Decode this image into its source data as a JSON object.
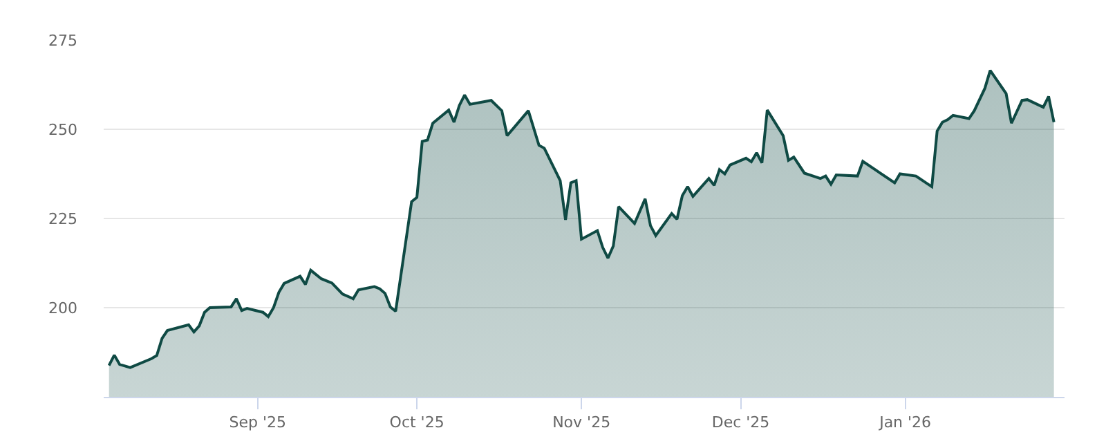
{
  "chart_data": {
    "type": "area",
    "x": [
      "2025-08-04",
      "2025-08-05",
      "2025-08-06",
      "2025-08-08",
      "2025-08-12",
      "2025-08-13",
      "2025-08-14",
      "2025-08-15",
      "2025-08-19",
      "2025-08-20",
      "2025-08-21",
      "2025-08-22",
      "2025-08-23",
      "2025-08-27",
      "2025-08-28",
      "2025-08-29",
      "2025-08-30",
      "2025-09-02",
      "2025-09-03",
      "2025-09-04",
      "2025-09-05",
      "2025-09-06",
      "2025-09-09",
      "2025-09-10",
      "2025-09-11",
      "2025-09-13",
      "2025-09-15",
      "2025-09-17",
      "2025-09-19",
      "2025-09-20",
      "2025-09-23",
      "2025-09-24",
      "2025-09-25",
      "2025-09-26",
      "2025-09-27",
      "2025-09-30",
      "2025-10-01",
      "2025-10-02",
      "2025-10-03",
      "2025-10-04",
      "2025-10-07",
      "2025-10-08",
      "2025-10-09",
      "2025-10-10",
      "2025-10-11",
      "2025-10-15",
      "2025-10-17",
      "2025-10-18",
      "2025-10-22",
      "2025-10-24",
      "2025-10-25",
      "2025-10-28",
      "2025-10-29",
      "2025-10-30",
      "2025-10-31",
      "2025-11-01",
      "2025-11-04",
      "2025-11-05",
      "2025-11-06",
      "2025-11-07",
      "2025-11-08",
      "2025-11-11",
      "2025-11-13",
      "2025-11-14",
      "2025-11-15",
      "2025-11-18",
      "2025-11-19",
      "2025-11-20",
      "2025-11-21",
      "2025-11-22",
      "2025-11-25",
      "2025-11-26",
      "2025-11-27",
      "2025-11-28",
      "2025-11-29",
      "2025-12-02",
      "2025-12-03",
      "2025-12-04",
      "2025-12-05",
      "2025-12-06",
      "2025-12-09",
      "2025-12-10",
      "2025-12-11",
      "2025-12-13",
      "2025-12-16",
      "2025-12-17",
      "2025-12-18",
      "2025-12-19",
      "2025-12-23",
      "2025-12-24",
      "2025-12-30",
      "2025-12-31",
      "2026-01-03",
      "2026-01-06",
      "2026-01-07",
      "2026-01-08",
      "2026-01-09",
      "2026-01-10",
      "2026-01-13",
      "2026-01-14",
      "2026-01-16",
      "2026-01-17",
      "2026-01-20",
      "2026-01-21",
      "2026-01-23",
      "2026-01-24",
      "2026-01-27",
      "2026-01-28",
      "2026-01-29"
    ],
    "series": [
      {
        "color": "#0f4a44",
        "values": [
          183.8,
          186.7,
          184.1,
          183.2,
          185.7,
          186.6,
          191.4,
          193.6,
          195.2,
          193.2,
          194.9,
          198.7,
          200.0,
          200.2,
          202.5,
          199.2,
          199.8,
          198.7,
          197.5,
          200.0,
          204.3,
          206.8,
          208.8,
          206.5,
          210.5,
          208.1,
          206.9,
          203.8,
          202.5,
          205.0,
          205.9,
          205.3,
          204.0,
          200.2,
          199.0,
          229.7,
          230.9,
          246.6,
          247.0,
          251.7,
          255.4,
          252.0,
          256.7,
          259.6,
          257.0,
          258.1,
          255.2,
          248.2,
          255.2,
          245.5,
          244.7,
          235.6,
          224.6,
          235.0,
          235.6,
          219.2,
          221.6,
          216.9,
          213.9,
          217.3,
          228.3,
          223.6,
          230.5,
          223.0,
          220.2,
          226.4,
          224.8,
          231.4,
          233.9,
          231.2,
          236.2,
          234.3,
          238.7,
          237.5,
          240.0,
          241.9,
          240.9,
          243.4,
          240.6,
          255.4,
          248.2,
          241.3,
          242.2,
          237.7,
          236.2,
          236.9,
          234.6,
          237.2,
          236.9,
          241.0,
          235.0,
          237.5,
          236.9,
          233.9,
          249.5,
          252.0,
          252.7,
          253.9,
          253.0,
          255.2,
          261.5,
          266.5,
          260.0,
          251.7,
          258.1,
          258.3,
          256.2,
          259.2,
          252.0
        ]
      }
    ],
    "xlim": [
      "2025-08-03",
      "2026-01-31"
    ],
    "xticks": [
      {
        "value": "2025-09-01",
        "label": "Sep '25"
      },
      {
        "value": "2025-10-01",
        "label": "Oct '25"
      },
      {
        "value": "2025-11-01",
        "label": "Nov '25"
      },
      {
        "value": "2025-12-01",
        "label": "Dec '25"
      },
      {
        "value": "2026-01-01",
        "label": "Jan '26"
      }
    ],
    "ylim": [
      175,
      275
    ],
    "yticks": [
      {
        "value": 175,
        "label": null
      },
      200,
      225,
      250,
      275
    ],
    "grid": "y",
    "legend": false
  }
}
